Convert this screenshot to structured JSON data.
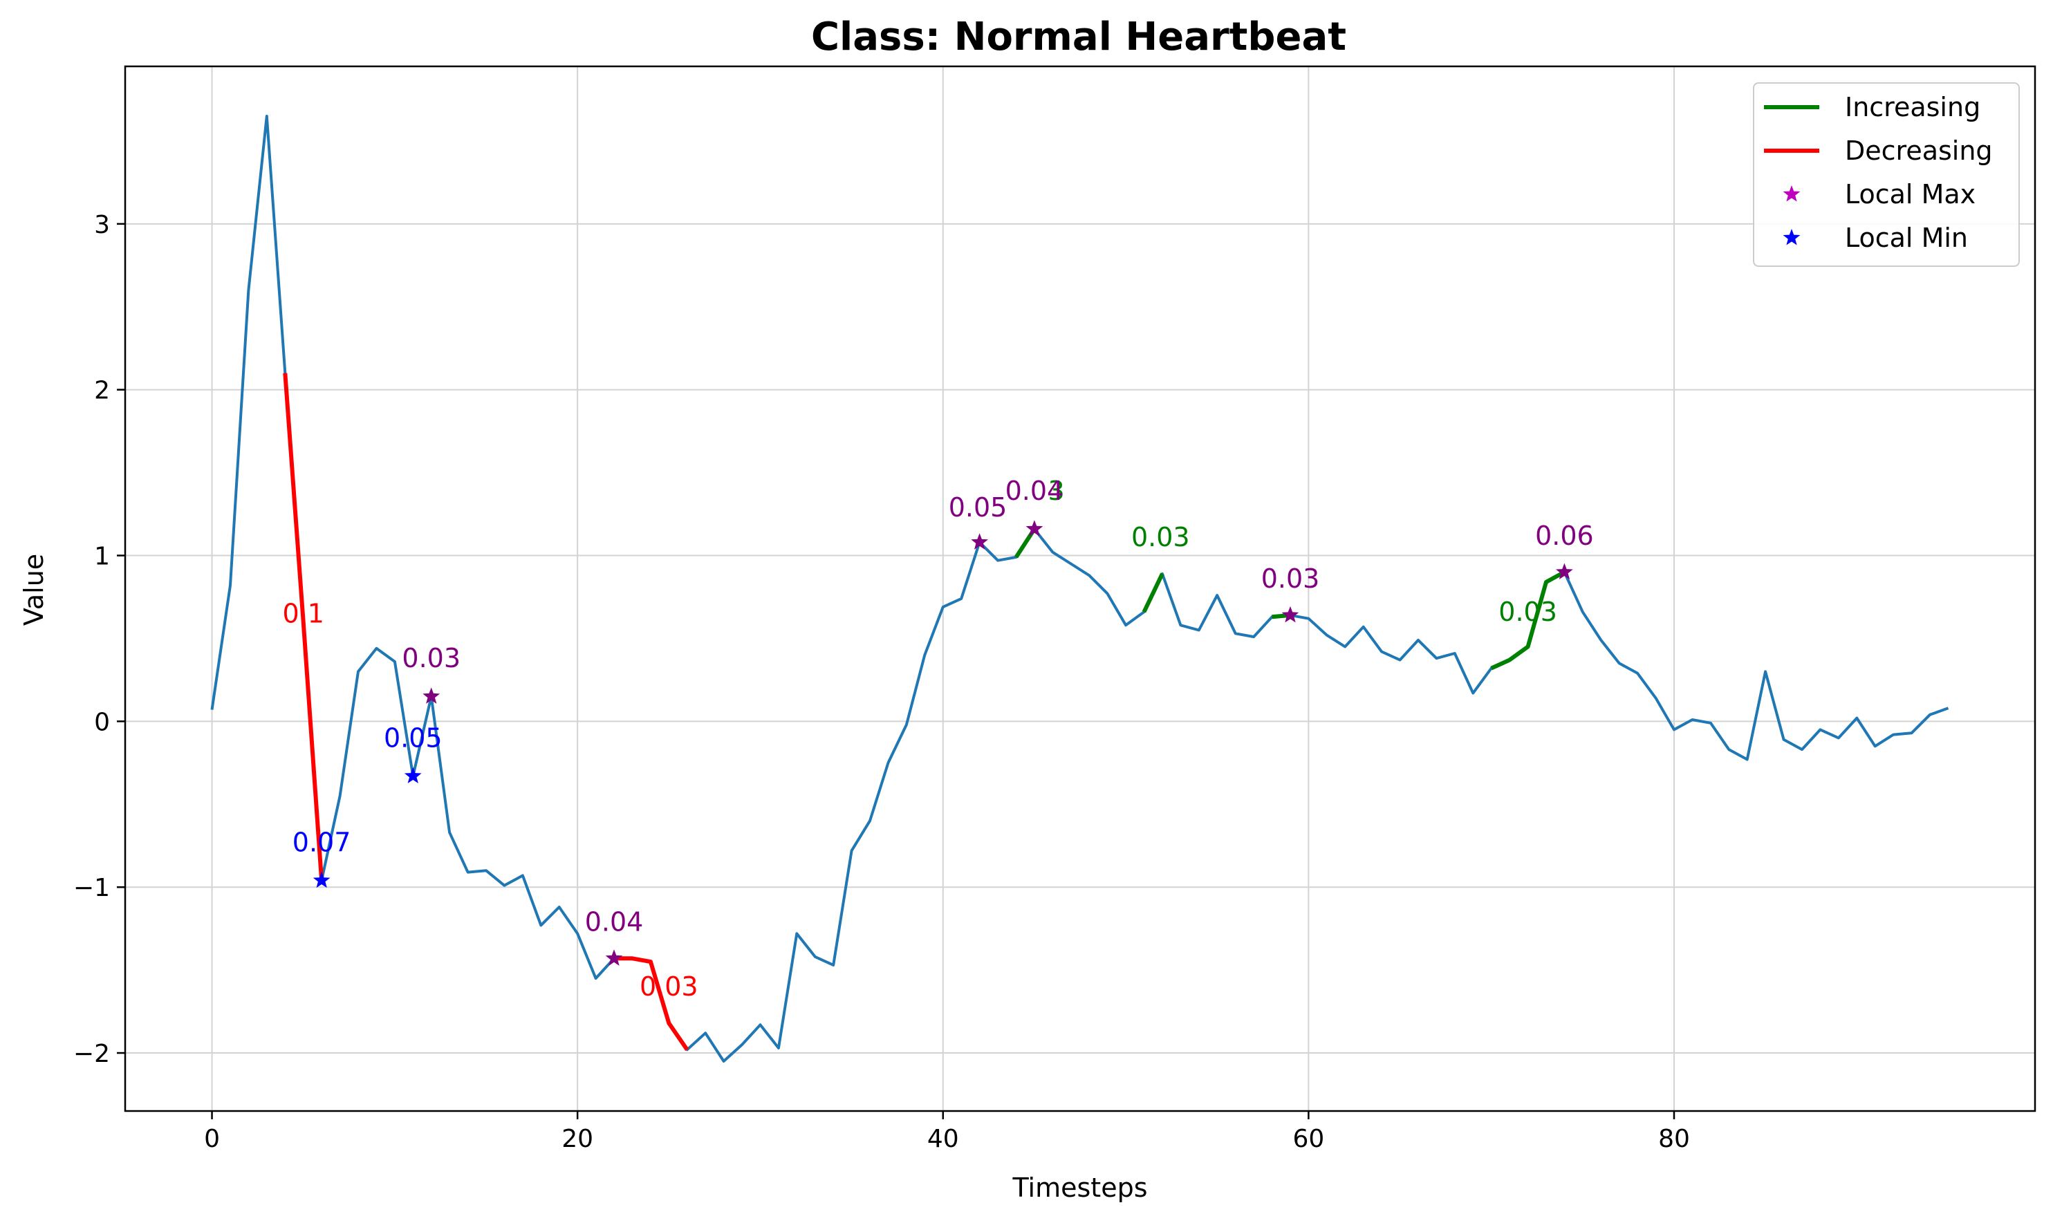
{
  "chart_data": {
    "type": "line",
    "title": "Class: Normal Heartbeat",
    "xlabel": "Timesteps",
    "ylabel": "Value",
    "xlim": [
      -4.75,
      99.75
    ],
    "ylim": [
      -2.35,
      3.95
    ],
    "xticks": [
      0,
      20,
      40,
      60,
      80
    ],
    "yticks": [
      -2,
      -1,
      0,
      1,
      2,
      3
    ],
    "ytick_labels": [
      "−2",
      "−1",
      "0",
      "1",
      "2",
      "3"
    ],
    "grid": true,
    "legend_position": "top-right",
    "series": {
      "x": [
        0,
        1,
        2,
        3,
        4,
        5,
        6,
        7,
        8,
        9,
        10,
        11,
        12,
        13,
        14,
        15,
        16,
        17,
        18,
        19,
        20,
        21,
        22,
        23,
        24,
        25,
        26,
        27,
        28,
        29,
        30,
        31,
        32,
        33,
        34,
        35,
        36,
        37,
        38,
        39,
        40,
        41,
        42,
        43,
        44,
        45,
        46,
        47,
        48,
        49,
        50,
        51,
        52,
        53,
        54,
        55,
        56,
        57,
        58,
        59,
        60,
        61,
        62,
        63,
        64,
        65,
        66,
        67,
        68,
        69,
        70,
        71,
        72,
        73,
        74,
        75,
        76,
        77,
        78,
        79,
        80,
        81,
        82,
        83,
        84,
        85,
        86,
        87,
        88,
        89,
        90,
        91,
        92,
        93,
        94,
        95
      ],
      "y": [
        0.07,
        0.82,
        2.6,
        3.65,
        2.1,
        0.6,
        -0.96,
        -0.45,
        0.3,
        0.44,
        0.36,
        -0.33,
        0.15,
        -0.67,
        -0.91,
        -0.9,
        -0.99,
        -0.93,
        -1.23,
        -1.12,
        -1.28,
        -1.55,
        -1.43,
        -1.43,
        -1.45,
        -1.82,
        -1.98,
        -1.88,
        -2.05,
        -1.95,
        -1.83,
        -1.97,
        -1.28,
        -1.42,
        -1.47,
        -0.78,
        -0.6,
        -0.25,
        -0.02,
        0.4,
        0.69,
        0.74,
        1.08,
        0.97,
        0.99,
        1.16,
        1.02,
        0.95,
        0.88,
        0.77,
        0.58,
        0.66,
        0.89,
        0.58,
        0.55,
        0.76,
        0.53,
        0.51,
        0.63,
        0.64,
        0.62,
        0.52,
        0.45,
        0.57,
        0.42,
        0.37,
        0.49,
        0.38,
        0.41,
        0.17,
        0.32,
        0.37,
        0.45,
        0.84,
        0.9,
        0.66,
        0.49,
        0.35,
        0.29,
        0.14,
        -0.05,
        0.01,
        -0.01,
        -0.17,
        -0.23,
        0.3,
        -0.11,
        -0.17,
        -0.05,
        -0.1,
        0.02,
        -0.15,
        -0.08,
        -0.07,
        0.04,
        0.08
      ],
      "color": "#1f77b4"
    },
    "increasing_segments": [
      {
        "x": [
          44,
          45
        ],
        "y": [
          0.99,
          1.16
        ]
      },
      {
        "x": [
          51,
          52
        ],
        "y": [
          0.66,
          0.89
        ]
      },
      {
        "x": [
          58,
          59
        ],
        "y": [
          0.63,
          0.64
        ]
      },
      {
        "x": [
          70,
          71,
          72,
          73,
          74
        ],
        "y": [
          0.32,
          0.37,
          0.45,
          0.84,
          0.9
        ]
      }
    ],
    "decreasing_segments": [
      {
        "x": [
          4,
          5,
          6
        ],
        "y": [
          2.1,
          0.6,
          -0.96
        ]
      },
      {
        "x": [
          22,
          23,
          24,
          25,
          26
        ],
        "y": [
          -1.43,
          -1.43,
          -1.45,
          -1.82,
          -1.98
        ]
      }
    ],
    "local_max": {
      "x": [
        12,
        22,
        42,
        45,
        59,
        74
      ],
      "y": [
        0.15,
        -1.43,
        1.08,
        1.16,
        0.64,
        0.9
      ]
    },
    "local_min": {
      "x": [
        6,
        11
      ],
      "y": [
        -0.96,
        -0.33
      ]
    },
    "annotations": [
      {
        "text": "0.1",
        "x": 5.0,
        "y": 0.65,
        "color": "#ff0000"
      },
      {
        "text": "0.03",
        "x": 12.0,
        "y": 0.38,
        "color": "#800080"
      },
      {
        "text": "0.05",
        "x": 11.0,
        "y": -0.1,
        "color": "#0000ff"
      },
      {
        "text": "0.07",
        "x": 6.0,
        "y": -0.73,
        "color": "#0000ff"
      },
      {
        "text": "0.04",
        "x": 22.0,
        "y": -1.21,
        "color": "#800080"
      },
      {
        "text": "0.03",
        "x": 25.0,
        "y": -1.6,
        "color": "#ff0000"
      },
      {
        "text": "0.05",
        "x": 41.9,
        "y": 1.29,
        "color": "#800080"
      },
      {
        "text": "3",
        "x": 46.2,
        "y": 1.39,
        "color": "#008000"
      },
      {
        "text": "0.04",
        "x": 45.0,
        "y": 1.39,
        "color": "#800080"
      },
      {
        "text": "0.03",
        "x": 51.9,
        "y": 1.11,
        "color": "#008000"
      },
      {
        "text": "0.03",
        "x": 59.0,
        "y": 0.86,
        "color": "#800080"
      },
      {
        "text": "0.06",
        "x": 74.0,
        "y": 1.12,
        "color": "#800080"
      },
      {
        "text": "0.03",
        "x": 72.0,
        "y": 0.66,
        "color": "#008000"
      }
    ],
    "legend": [
      {
        "label": "Increasing",
        "kind": "line",
        "color": "#008000"
      },
      {
        "label": "Decreasing",
        "kind": "line",
        "color": "#ff0000"
      },
      {
        "label": "Local Max",
        "kind": "star",
        "color": "#bf00bf"
      },
      {
        "label": "Local Min",
        "kind": "star",
        "color": "#0000ff"
      }
    ],
    "colors": {
      "max_marker": "#800080",
      "min_marker": "#0000ff",
      "grid": "#d3d3d3"
    }
  }
}
